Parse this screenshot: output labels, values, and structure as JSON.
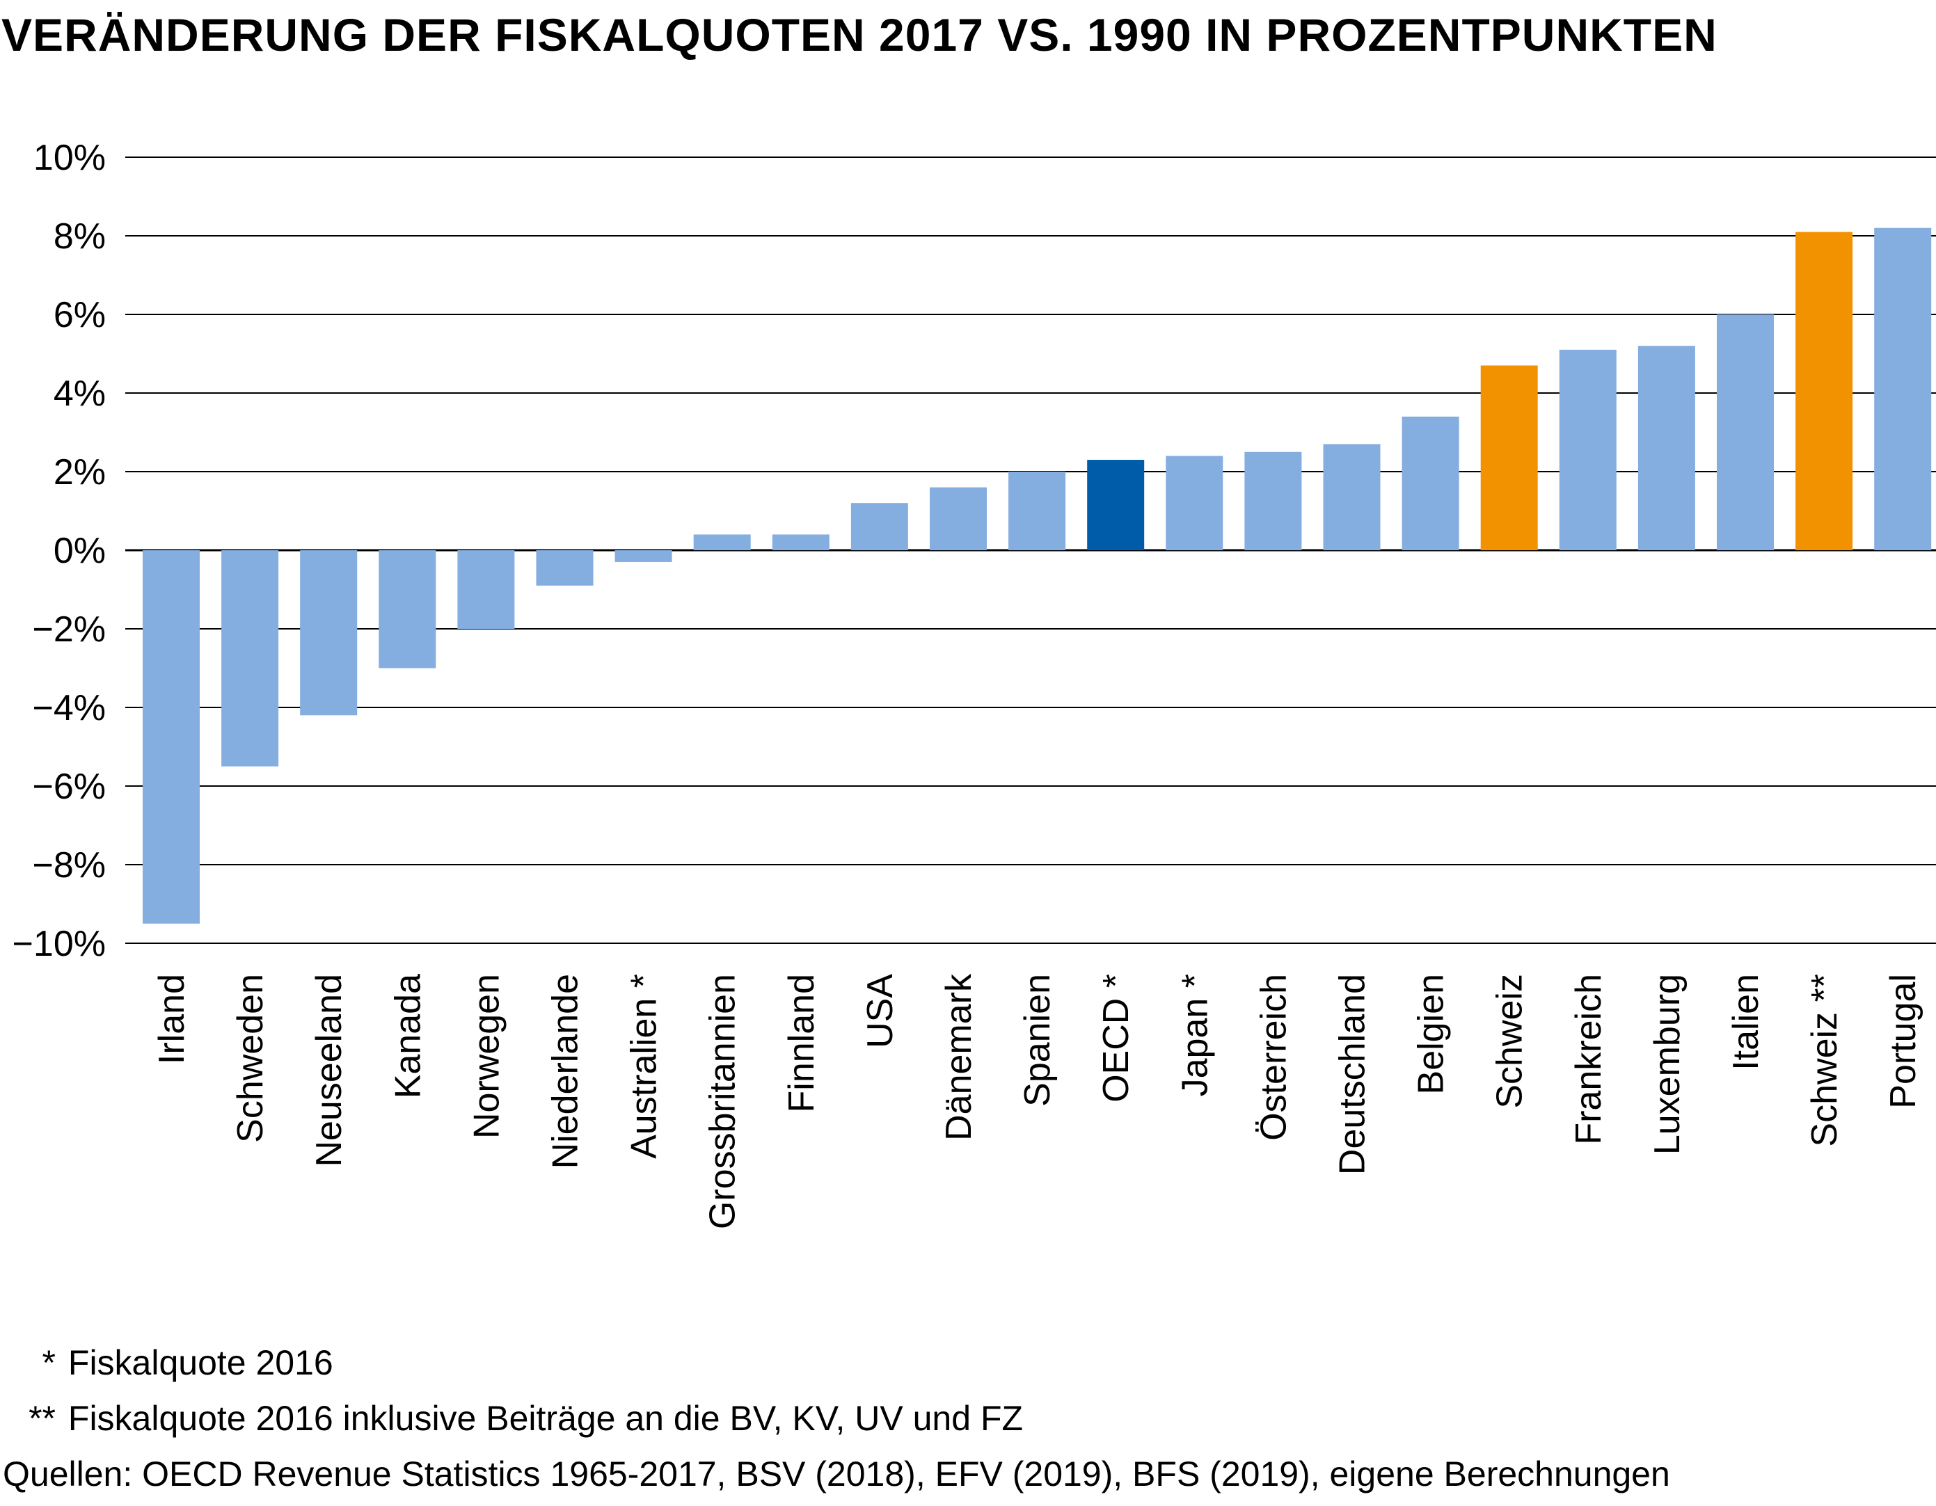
{
  "colors": {
    "default": "#84ade0",
    "highlight": "#f39200",
    "oecd": "#005ca9",
    "gridline": "#000000"
  },
  "chart_data": {
    "type": "bar",
    "title": "VERÄNDERUNG DER FISKALQUOTEN 2017 VS. 1990 IN PROZENTPUNKTEN",
    "xlabel": "",
    "ylabel": "",
    "ylim": [
      -10,
      10
    ],
    "yticks": [
      10,
      8,
      6,
      4,
      2,
      0,
      -2,
      -4,
      -6,
      -8,
      -10
    ],
    "ytick_labels": [
      "10%",
      "8%",
      "6%",
      "4%",
      "2%",
      "0%",
      "−2%",
      "−4%",
      "−6%",
      "−8%",
      "−10%"
    ],
    "grid": true,
    "categories": [
      "Irland",
      "Schweden",
      "Neuseeland",
      "Kanada",
      "Norwegen",
      "Niederlande",
      "Australien *",
      "Grossbritannien",
      "Finnland",
      "USA",
      "Dänemark",
      "Spanien",
      "OECD *",
      "Japan *",
      "Österreich",
      "Deutschland",
      "Belgien",
      "Schweiz",
      "Frankreich",
      "Luxemburg",
      "Italien",
      "Schweiz **",
      "Portugal"
    ],
    "values": [
      -9.5,
      -5.5,
      -4.2,
      -3.0,
      -2.0,
      -0.9,
      -0.3,
      0.4,
      0.4,
      1.2,
      1.6,
      2.0,
      2.3,
      2.4,
      2.5,
      2.7,
      3.4,
      4.7,
      5.1,
      5.2,
      6.0,
      8.1,
      8.2
    ],
    "bar_colors": [
      "default",
      "default",
      "default",
      "default",
      "default",
      "default",
      "default",
      "default",
      "default",
      "default",
      "default",
      "default",
      "oecd",
      "default",
      "default",
      "default",
      "default",
      "highlight",
      "default",
      "default",
      "default",
      "highlight",
      "default"
    ]
  },
  "footnotes": {
    "note1_mark": "*",
    "note1_text": "Fiskalquote 2016",
    "note2_mark": "**",
    "note2_text": "Fiskalquote 2016 inklusive Beiträge an die BV, KV, UV und FZ",
    "sources": "Quellen: OECD Revenue Statistics 1965-2017, BSV (2018), EFV (2019), BFS (2019), eigene Berechnungen"
  }
}
